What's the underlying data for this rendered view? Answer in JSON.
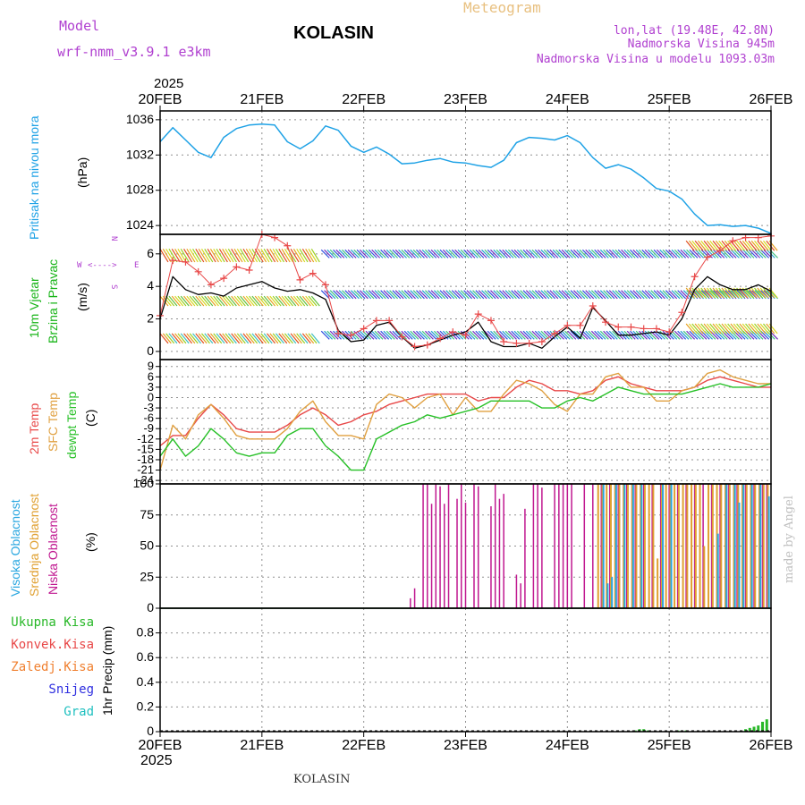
{
  "header": {
    "model_label": "Model",
    "model_name": "wrf-nmm_v3.9.1 e3km",
    "station": "KOLASIN",
    "title": "Meteogram",
    "lonlat": "lon,lat (19.48E, 42.8N)",
    "elevation": "Nadmorska Visina 945m",
    "model_elevation": "Nadmorska Visina u modelu 1093.03m",
    "year_top": "2025",
    "year_bottom": "2025",
    "footer_station": "KOLASIN",
    "credit": "made by Angel"
  },
  "colors": {
    "pressure": "#1fa2e6",
    "wind_label": "#17b417",
    "temp2m": "#e84848",
    "sfc": "#e0a040",
    "dewpt": "#26c026",
    "high_cloud": "#2aa7e0",
    "mid_cloud": "#e0a030",
    "low_cloud": "#c01890",
    "purple": "#b040d0",
    "total_precip": "#28b828",
    "conv_precip": "#e84848",
    "frozen_precip": "#f08030",
    "snow": "#3030e0",
    "hail": "#20c0c0"
  },
  "chart_data": [
    {
      "type": "line",
      "panel": "pressure",
      "label_main": "Pritisak na nivou mora",
      "units": "(hPa)",
      "x_tick_labels": [
        "20FEB",
        "21FEB",
        "22FEB",
        "23FEB",
        "24FEB",
        "25FEB",
        "26FEB"
      ],
      "x_range_hours": [
        0,
        144
      ],
      "ylim": [
        1023,
        1037
      ],
      "y_ticks": [
        1024,
        1028,
        1032,
        1036
      ],
      "series": [
        {
          "name": "Pritisak",
          "x": [
            0,
            3,
            6,
            9,
            12,
            15,
            18,
            21,
            24,
            27,
            30,
            33,
            36,
            39,
            42,
            45,
            48,
            51,
            54,
            57,
            60,
            63,
            66,
            69,
            72,
            75,
            78,
            81,
            84,
            87,
            90,
            93,
            96,
            99,
            102,
            105,
            108,
            111,
            114,
            117,
            120,
            123,
            126,
            129,
            132,
            135,
            138,
            141,
            144
          ],
          "values": [
            1033.5,
            1035.1,
            1033.7,
            1032.3,
            1031.7,
            1034.0,
            1035.0,
            1035.4,
            1035.5,
            1035.4,
            1033.5,
            1032.7,
            1033.6,
            1035.3,
            1034.8,
            1033.0,
            1032.3,
            1032.9,
            1032.1,
            1031.0,
            1031.1,
            1031.4,
            1031.6,
            1031.2,
            1031.1,
            1030.8,
            1030.6,
            1031.4,
            1033.4,
            1034.0,
            1033.9,
            1033.7,
            1034.2,
            1033.4,
            1031.7,
            1030.5,
            1030.9,
            1030.4,
            1029.4,
            1028.2,
            1027.9,
            1027.0,
            1025.3,
            1024.0,
            1024.1,
            1023.9,
            1024.0,
            1023.7,
            1023.1
          ]
        }
      ]
    },
    {
      "type": "line",
      "panel": "wind",
      "label_main": "10m Vjetar",
      "label_sub": "Brzina i Pravac",
      "units": "(m/s)",
      "compass": {
        "n": "N",
        "s": "S",
        "w": "W",
        "e": "E",
        "arrows": "<---->"
      },
      "ylim": [
        -0.5,
        7.2
      ],
      "y_ticks": [
        0,
        2,
        4,
        6
      ],
      "series": [
        {
          "name": "Brzina",
          "x": [
            0,
            3,
            6,
            9,
            12,
            15,
            18,
            21,
            24,
            27,
            30,
            33,
            36,
            39,
            42,
            45,
            48,
            51,
            54,
            57,
            60,
            63,
            66,
            69,
            72,
            75,
            78,
            81,
            84,
            87,
            90,
            93,
            96,
            99,
            102,
            105,
            108,
            111,
            114,
            117,
            120,
            123,
            126,
            129,
            132,
            135,
            138,
            141,
            144
          ],
          "values": [
            2.0,
            4.6,
            3.8,
            3.5,
            3.6,
            3.4,
            3.9,
            4.1,
            4.3,
            3.9,
            3.7,
            3.8,
            3.6,
            3.2,
            1.3,
            0.6,
            0.7,
            1.6,
            1.8,
            0.9,
            0.2,
            0.4,
            0.7,
            1.0,
            1.2,
            1.8,
            0.6,
            0.3,
            0.3,
            0.5,
            0.2,
            0.9,
            1.5,
            0.8,
            2.7,
            1.9,
            1.0,
            1.0,
            1.1,
            1.2,
            1.0,
            2.0,
            3.8,
            4.6,
            4.1,
            3.8,
            3.8,
            4.1,
            3.7
          ]
        },
        {
          "name": "Udar",
          "x": [
            0,
            3,
            6,
            9,
            12,
            15,
            18,
            21,
            24,
            27,
            30,
            33,
            36,
            39,
            42,
            45,
            48,
            51,
            54,
            57,
            60,
            63,
            66,
            69,
            72,
            75,
            78,
            81,
            84,
            87,
            90,
            93,
            96,
            99,
            102,
            105,
            108,
            111,
            114,
            117,
            120,
            123,
            126,
            129,
            132,
            135,
            138,
            141,
            144
          ],
          "values": [
            2.2,
            5.6,
            5.5,
            4.9,
            4.1,
            4.5,
            5.2,
            5.0,
            7.2,
            7.0,
            6.5,
            4.4,
            4.8,
            4.1,
            1.1,
            1.0,
            1.4,
            1.9,
            1.9,
            0.9,
            0.3,
            0.4,
            0.8,
            1.2,
            1.0,
            2.3,
            1.9,
            0.6,
            0.5,
            0.5,
            0.6,
            1.1,
            1.6,
            1.6,
            2.8,
            1.8,
            1.5,
            1.5,
            1.4,
            1.4,
            1.2,
            2.4,
            4.6,
            5.8,
            6.2,
            6.8,
            7.0,
            7.0,
            7.1
          ]
        }
      ]
    },
    {
      "type": "line",
      "panel": "temperature",
      "label_main": "2m Temp",
      "label_sfc": "SFC Temp",
      "label_dew": "dewpt Temp",
      "units": "(C)",
      "ylim": [
        -25,
        11
      ],
      "y_ticks": [
        9,
        6,
        3,
        0,
        -3,
        -6,
        -9,
        -12,
        -15,
        -18,
        -21,
        -24
      ],
      "x": [
        0,
        3,
        6,
        9,
        12,
        15,
        18,
        21,
        24,
        27,
        30,
        33,
        36,
        39,
        42,
        45,
        48,
        51,
        54,
        57,
        60,
        63,
        66,
        69,
        72,
        75,
        78,
        81,
        84,
        87,
        90,
        93,
        96,
        99,
        102,
        105,
        108,
        111,
        114,
        117,
        120,
        123,
        126,
        129,
        132,
        135,
        138,
        141,
        144
      ],
      "series": [
        {
          "name": "2m Temp",
          "values": [
            -14,
            -11,
            -11,
            -6,
            -2,
            -5,
            -9,
            -10,
            -10,
            -10,
            -8,
            -5,
            -3,
            -5,
            -8,
            -7,
            -5,
            -4,
            -2,
            -1,
            0,
            1,
            1,
            1,
            1,
            -1,
            0,
            0,
            3,
            5,
            4,
            2,
            2,
            1,
            2,
            5,
            6,
            4,
            3,
            2,
            2,
            2,
            3,
            5,
            6,
            5,
            4,
            3,
            3
          ]
        },
        {
          "name": "SFC Temp",
          "values": [
            -21,
            -8,
            -12,
            -5,
            -2,
            -6,
            -11,
            -12,
            -12,
            -12,
            -9,
            -4,
            -1,
            -7,
            -11,
            -11,
            -12,
            -2,
            1,
            0,
            -3,
            0,
            1,
            -5,
            0,
            -4,
            -4,
            1,
            5,
            4,
            2,
            -2,
            -4,
            1,
            1,
            6,
            7,
            3,
            3,
            -1,
            -1,
            2,
            3,
            7,
            8,
            6,
            5,
            4,
            4
          ]
        },
        {
          "name": "dewpt Temp",
          "values": [
            -17,
            -12,
            -17,
            -14,
            -9,
            -12,
            -16,
            -17,
            -16,
            -16,
            -11,
            -9,
            -9,
            -14,
            -17,
            -21,
            -21,
            -12,
            -10,
            -8,
            -7,
            -5,
            -6,
            -5,
            -4,
            -3,
            -1,
            -1,
            -1,
            -1,
            -3,
            -3,
            -1,
            0,
            -1,
            1,
            3,
            2,
            1,
            1,
            1,
            1,
            2,
            3,
            4,
            3,
            3,
            3,
            4
          ]
        }
      ]
    },
    {
      "type": "bar",
      "panel": "clouds",
      "label_high": "Visoka Oblacnost",
      "label_mid": "Srednja Oblacnost",
      "label_low": "Niska Oblacnost",
      "units": "(%)",
      "ylim": [
        0,
        100
      ],
      "y_ticks": [
        0,
        25,
        50,
        75,
        100
      ],
      "series": [
        {
          "name": "Niska",
          "x": [
            59,
            60,
            62,
            63,
            64,
            65,
            66,
            67,
            68,
            70,
            71,
            72,
            74,
            75,
            78,
            79,
            80,
            81,
            84,
            85,
            86,
            88,
            89,
            90,
            93,
            94,
            95,
            96,
            97,
            100,
            102,
            104,
            106,
            108,
            110,
            112,
            114,
            116,
            118,
            120,
            122,
            124,
            126,
            128,
            130,
            132,
            134,
            136,
            138,
            140,
            142,
            143
          ],
          "values": [
            8,
            16,
            100,
            100,
            84,
            100,
            98,
            84,
            100,
            88,
            100,
            85,
            100,
            98,
            82,
            100,
            88,
            92,
            27,
            20,
            80,
            100,
            100,
            97,
            100,
            100,
            100,
            100,
            100,
            100,
            100,
            100,
            100,
            100,
            100,
            100,
            100,
            100,
            100,
            100,
            100,
            100,
            100,
            100,
            100,
            100,
            100,
            100,
            100,
            100,
            100,
            100
          ]
        },
        {
          "name": "Srednja",
          "x": [
            103,
            104,
            105,
            106,
            107,
            108,
            109,
            110,
            111,
            112,
            113,
            114,
            115,
            116,
            117,
            118,
            119,
            120,
            121,
            122,
            123,
            124,
            125,
            126,
            127,
            128,
            129,
            130,
            131,
            132,
            133,
            134,
            135,
            136,
            137,
            138,
            139,
            140,
            141,
            142,
            143
          ],
          "values": [
            100,
            100,
            100,
            100,
            100,
            100,
            100,
            100,
            100,
            100,
            100,
            100,
            100,
            100,
            40,
            100,
            100,
            100,
            100,
            100,
            100,
            100,
            100,
            100,
            100,
            50,
            100,
            100,
            100,
            100,
            100,
            100,
            100,
            100,
            100,
            100,
            100,
            100,
            100,
            100,
            100
          ]
        },
        {
          "name": "Visoka",
          "x": [
            104,
            105,
            106,
            107,
            109,
            111,
            113,
            118,
            120,
            131,
            133,
            135,
            136,
            137,
            139,
            141,
            143
          ],
          "values": [
            100,
            20,
            25,
            100,
            100,
            100,
            100,
            100,
            100,
            60,
            100,
            100,
            85,
            100,
            100,
            100,
            90
          ]
        }
      ]
    },
    {
      "type": "bar",
      "panel": "precip",
      "legend": [
        "Ukupna Kisa",
        "Konvek.Kisa",
        "Zaledj.Kisa",
        "Snijeg",
        "Grad"
      ],
      "units": "1hr Precip (mm)",
      "ylim": [
        0,
        1.0
      ],
      "y_ticks": [
        0,
        0.2,
        0.4,
        0.6,
        0.8
      ],
      "series": [
        {
          "name": "Ukupna Kisa",
          "x": [
            112,
            113,
            114,
            115,
            122,
            123,
            124,
            137,
            138,
            139,
            140,
            141,
            142,
            143
          ],
          "values": [
            0.01,
            0.02,
            0.02,
            0.01,
            0.01,
            0.01,
            0.01,
            0.01,
            0.02,
            0.03,
            0.04,
            0.05,
            0.08,
            0.1
          ]
        }
      ]
    }
  ]
}
